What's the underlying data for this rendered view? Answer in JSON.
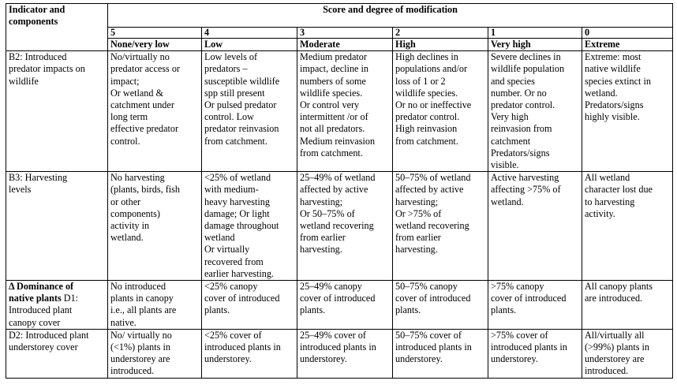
{
  "table": {
    "header": {
      "indicator_label": "Indicator and\ncomponents",
      "score_label": "Score and degree of modification"
    },
    "scores": [
      "5",
      "4",
      "3",
      "2",
      "1",
      "0"
    ],
    "degrees": [
      "None/very low",
      "Low",
      "Moderate",
      "High",
      "Very high",
      "Extreme"
    ],
    "rows": [
      {
        "indicator_bold": "",
        "indicator": "B2: Introduced\npredator impacts on\nwildlife",
        "cells": [
          "No/virtually no\npredator access or\nimpact;\nOr wetland &\ncatchment under\nlong term\neffective predator\ncontrol.",
          "Low levels of\npredators –\nsusceptible wildlife\nspp still present\nOr pulsed predator\ncontrol.  Low\npredator reinvasion\nfrom catchment.",
          "Medium predator\nimpact, decline in\nnumbers of some\nwildlife species.\nOr control very\nintermittent /or of\nnot all predators.\nMedium reinvasion\nfrom catchment.",
          "High declines in\npopulations and/or\nloss of 1 or 2\nwildlife species.\nOr no or ineffective\npredator control.\nHigh reinvasion\nfrom catchment.",
          "Severe declines in\nwildlife population\nand species\nnumber. Or no\npredator control.\nVery high\nreinvasion from\ncatchment\nPredators/signs\nvisible.",
          "Extreme: most\nnative wildlife\nspecies extinct in\nwetland.\nPredators/signs\nhighly visible."
        ]
      },
      {
        "indicator_bold": "",
        "indicator": "B3: Harvesting\nlevels",
        "cells": [
          "No harvesting\n(plants, birds, fish\nor other\ncomponents)\nactivity in\nwetland.",
          "<25% of wetland\nwith medium-\nheavy harvesting\ndamage; Or light\ndamage throughout\nwetland\nOr virtually\nrecovered from\nearlier harvesting.",
          "25–49% of wetland\naffected by active\nharvesting;\nOr 50–75% of\nwetland recovering\nfrom earlier\nharvesting.",
          "50–75% of wetland\naffected by active\nharvesting;\nOr >75% of\nwetland recovering\nfrom earlier\nharvesting.",
          "Active harvesting\naffecting >75% of\nwetland.",
          "All wetland\ncharacter lost due\nto harvesting\nactivity."
        ]
      },
      {
        "indicator_bold": "Δ Dominance of\nnative plants",
        "indicator": " D1:\nIntroduced plant\ncanopy cover",
        "cells": [
          "No introduced\nplants in canopy\ni.e., all plants are\nnative.",
          "<25% canopy\ncover of introduced\nplants.",
          "25–49% canopy\ncover of introduced\nplants.",
          "50–75% canopy\ncover of introduced\nplants.",
          ">75% canopy\ncover of introduced\nplants.",
          "All canopy plants\nare introduced."
        ]
      },
      {
        "indicator_bold": "",
        "indicator": "D2: Introduced plant\nunderstorey cover",
        "cells": [
          "No/ virtually no\n(<1%) plants in\nunderstorey are\nintroduced.",
          "<25% cover of\nintroduced plants in\nunderstorey.",
          "25–49% cover of\nintroduced plants in\nunderstorey.",
          "50–75% cover of\nintroduced plants in\nunderstorey.",
          ">75% cover of\nintroduced plants in\nunderstorey.",
          "All/virtually all\n(>99%) plants in\nunderstorey are\nintroduced."
        ]
      }
    ]
  }
}
